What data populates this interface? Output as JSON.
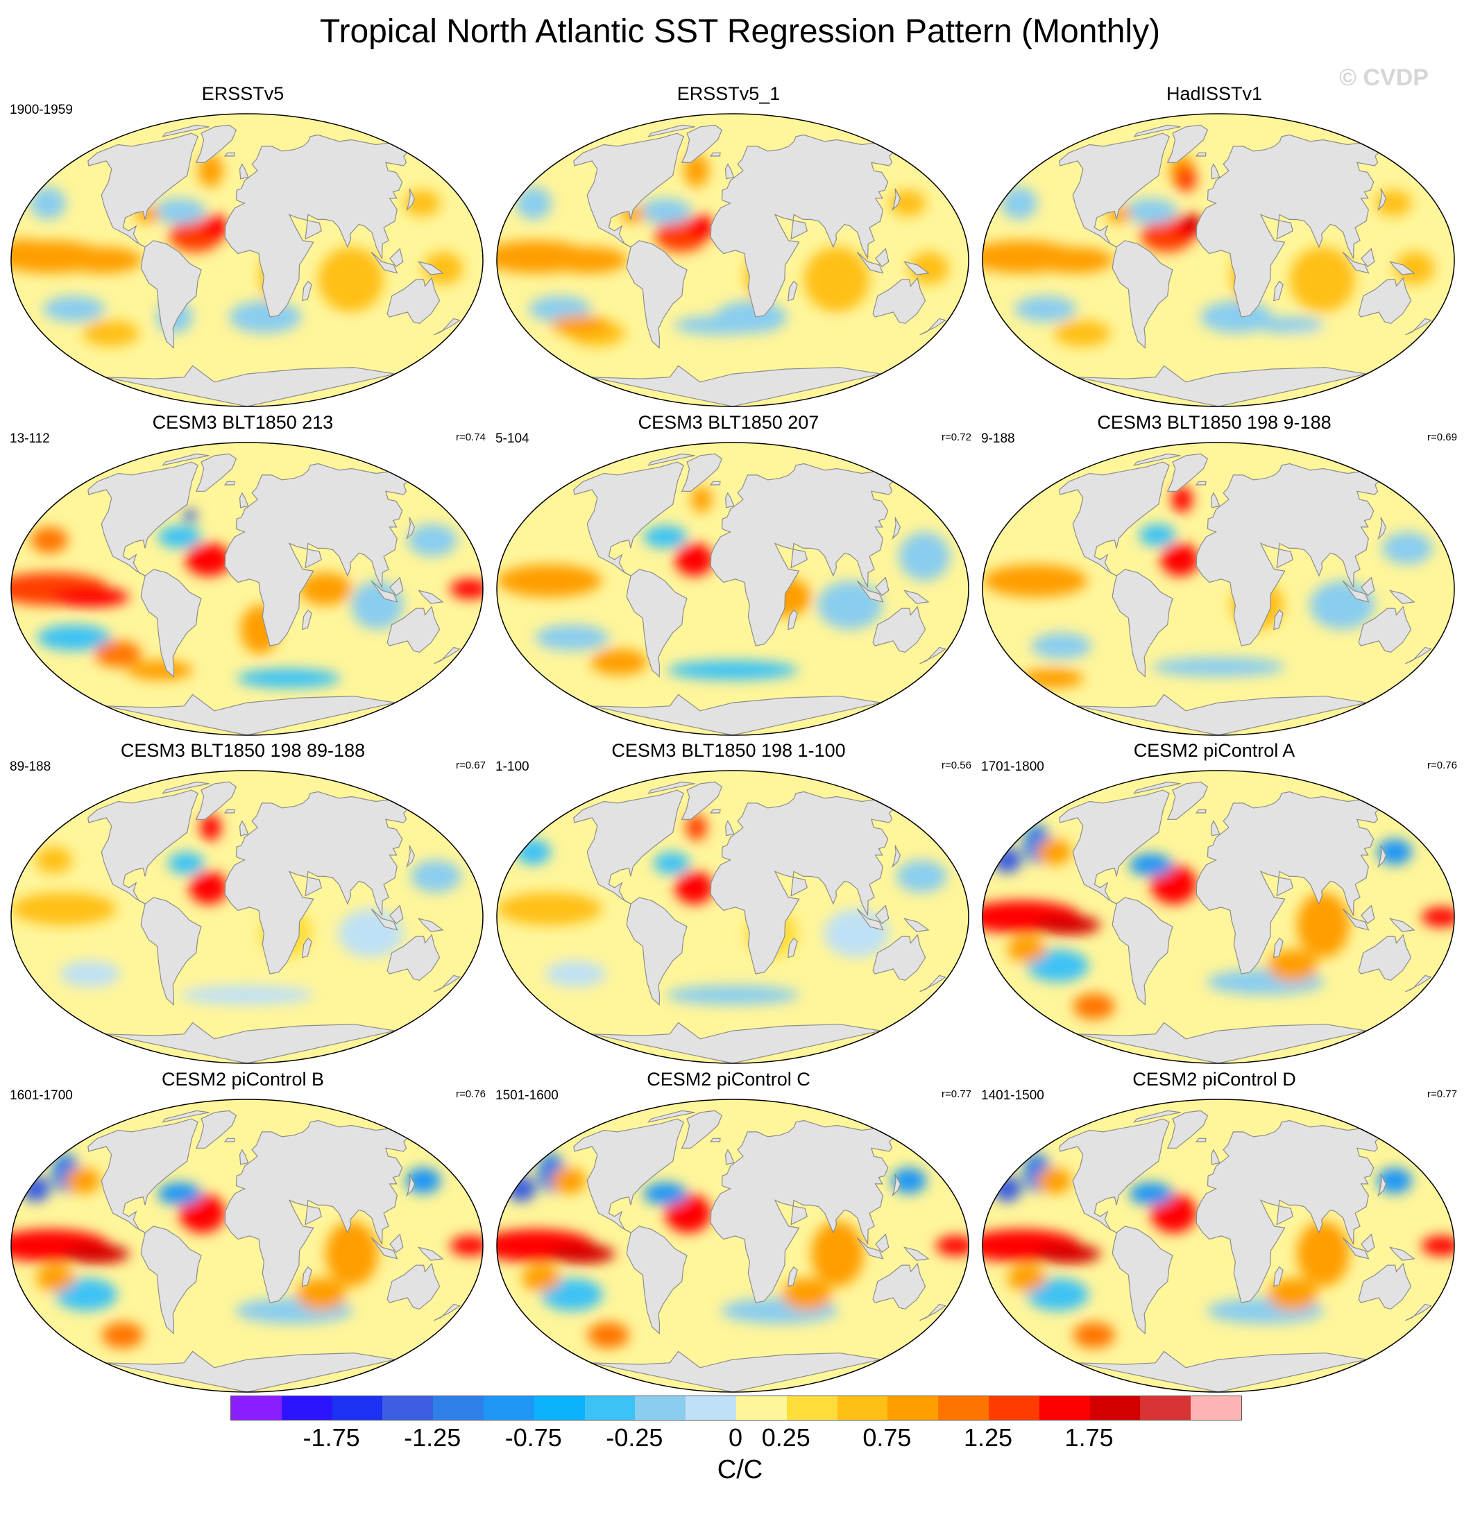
{
  "figure": {
    "title": "Tropical North Atlantic SST Regression Pattern (Monthly)",
    "watermark": "© CVDP"
  },
  "panels": [
    {
      "title": "ERSSTv5",
      "period": "1900-1959",
      "corr": "",
      "pattern": "obs1"
    },
    {
      "title": "ERSSTv5_1",
      "period": "",
      "corr": "",
      "pattern": "obs2"
    },
    {
      "title": "HadISSTv1",
      "period": "",
      "corr": "",
      "pattern": "obs3"
    },
    {
      "title": "CESM3 BLT1850 213",
      "period": "13-112",
      "corr": "r=0.74",
      "pattern": "blt1"
    },
    {
      "title": "CESM3 BLT1850 207",
      "period": "5-104",
      "corr": "r=0.72",
      "pattern": "blt2"
    },
    {
      "title": "CESM3 BLT1850 198 9-188",
      "period": "9-188",
      "corr": "r=0.69",
      "pattern": "blt3"
    },
    {
      "title": "CESM3 BLT1850 198 89-188",
      "period": "89-188",
      "corr": "r=0.67",
      "pattern": "blt4"
    },
    {
      "title": "CESM3 BLT1850 198 1-100",
      "period": "1-100",
      "corr": "r=0.56",
      "pattern": "blt5"
    },
    {
      "title": "CESM2 piControl A",
      "period": "1701-1800",
      "corr": "r=0.76",
      "pattern": "pic"
    },
    {
      "title": "CESM2 piControl B",
      "period": "1601-1700",
      "corr": "r=0.76",
      "pattern": "pic"
    },
    {
      "title": "CESM2 piControl C",
      "period": "1501-1600",
      "corr": "r=0.77",
      "pattern": "pic"
    },
    {
      "title": "CESM2 piControl D",
      "period": "1401-1500",
      "corr": "r=0.77",
      "pattern": "pic"
    }
  ],
  "colorbar": {
    "colors": [
      "#8b1eff",
      "#2d14ff",
      "#1a32f2",
      "#3b5fe0",
      "#2f7fe8",
      "#1e96f5",
      "#0bb4fa",
      "#3cc2f5",
      "#8acdef",
      "#bfe1f5",
      "#fff59a",
      "#ffdd3a",
      "#ffbf14",
      "#ff9e00",
      "#ff7400",
      "#ff3c00",
      "#ff0000",
      "#d40000",
      "#d83434",
      "#ffb4b4"
    ],
    "tick_labels": [
      "-1.75",
      "-1.25",
      "-0.75",
      "-0.25",
      "0",
      "0.25",
      "0.75",
      "1.25",
      "1.75"
    ],
    "units": "C/C"
  },
  "map_style": {
    "land_color": "#e2e2e2",
    "coast_color": "#8c8c8c",
    "outline_color": "#000000"
  }
}
